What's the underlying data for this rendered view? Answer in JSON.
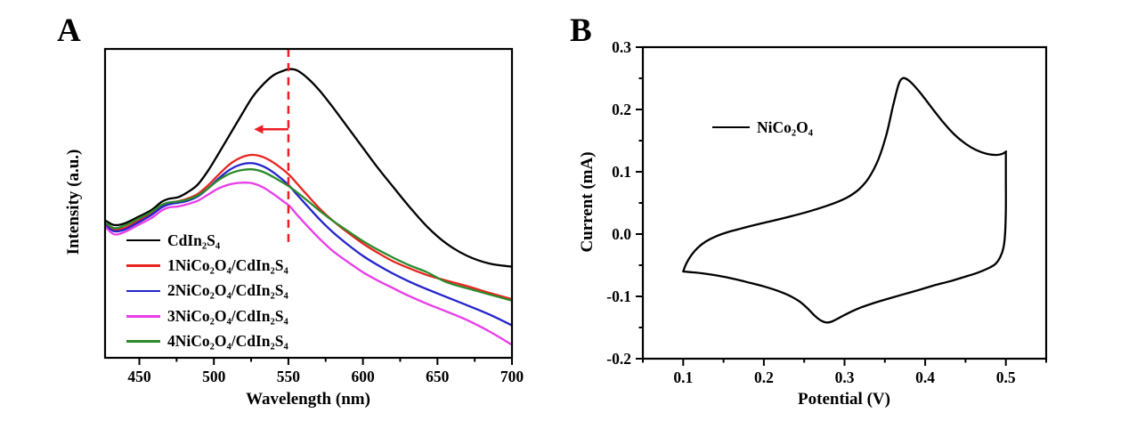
{
  "figure": {
    "background": "#ffffff",
    "panels": [
      {
        "letter": "A"
      },
      {
        "letter": "B"
      }
    ]
  },
  "chart_data": [
    {
      "type": "line",
      "panel_label": "A",
      "title": "",
      "xlabel": "Wavelength (nm)",
      "ylabel": "Intensity (a.u.)",
      "xlim": [
        427,
        700
      ],
      "ylim": [
        0,
        1
      ],
      "grid": false,
      "legend_position": "lower-left-inside",
      "xticks_major": [
        450,
        500,
        550,
        600,
        650,
        700
      ],
      "xtick_labels": [
        "450",
        "500",
        "550",
        "600",
        "650",
        "700"
      ],
      "xticks_minor": [
        475,
        525,
        575,
        625,
        675
      ],
      "yticks_major": [],
      "ytick_labels": [],
      "yticks_minor": [],
      "x": [
        427,
        433,
        440,
        450,
        458,
        465,
        470,
        476,
        482,
        489,
        496,
        503,
        511,
        519,
        526,
        533,
        540,
        547,
        551,
        556,
        563,
        571,
        580,
        590,
        600,
        610,
        620,
        631,
        643,
        656,
        670,
        685,
        700
      ],
      "series": [
        {
          "name": "CdIn₂S₄",
          "color": "#000000",
          "values": [
            0.445,
            0.43,
            0.435,
            0.458,
            0.478,
            0.505,
            0.515,
            0.52,
            0.535,
            0.56,
            0.605,
            0.66,
            0.725,
            0.79,
            0.845,
            0.885,
            0.915,
            0.93,
            0.935,
            0.93,
            0.905,
            0.865,
            0.81,
            0.745,
            0.68,
            0.615,
            0.555,
            0.49,
            0.425,
            0.37,
            0.33,
            0.305,
            0.295
          ]
        },
        {
          "name": "1NiCo₂O₄/CdIn₂S₄",
          "color": "#e8231f",
          "values": [
            0.435,
            0.415,
            0.42,
            0.445,
            0.468,
            0.492,
            0.502,
            0.507,
            0.515,
            0.53,
            0.558,
            0.592,
            0.628,
            0.65,
            0.657,
            0.65,
            0.632,
            0.607,
            0.59,
            0.563,
            0.525,
            0.483,
            0.443,
            0.405,
            0.37,
            0.34,
            0.313,
            0.29,
            0.268,
            0.25,
            0.232,
            0.21,
            0.19
          ]
        },
        {
          "name": "2NiCo₂O₄/CdIn₂S₄",
          "color": "#2424cc",
          "values": [
            0.43,
            0.41,
            0.415,
            0.44,
            0.462,
            0.487,
            0.497,
            0.502,
            0.508,
            0.522,
            0.548,
            0.58,
            0.61,
            0.627,
            0.63,
            0.62,
            0.6,
            0.573,
            0.555,
            0.527,
            0.49,
            0.448,
            0.406,
            0.366,
            0.33,
            0.3,
            0.273,
            0.247,
            0.222,
            0.197,
            0.17,
            0.14,
            0.105
          ]
        },
        {
          "name": "3NiCo₂O₄/CdIn₂S₄",
          "color": "#e83ce8",
          "values": [
            0.425,
            0.4,
            0.407,
            0.432,
            0.452,
            0.477,
            0.487,
            0.49,
            0.497,
            0.508,
            0.528,
            0.548,
            0.562,
            0.567,
            0.565,
            0.552,
            0.53,
            0.505,
            0.49,
            0.462,
            0.425,
            0.385,
            0.345,
            0.31,
            0.277,
            0.25,
            0.226,
            0.2,
            0.175,
            0.15,
            0.122,
            0.085,
            0.042
          ]
        },
        {
          "name": "4NiCo₂O₄/CdIn₂S₄",
          "color": "#2a8a2a",
          "values": [
            0.44,
            0.42,
            0.428,
            0.452,
            0.472,
            0.495,
            0.503,
            0.506,
            0.512,
            0.525,
            0.548,
            0.575,
            0.597,
            0.608,
            0.61,
            0.602,
            0.585,
            0.565,
            0.553,
            0.535,
            0.508,
            0.476,
            0.443,
            0.41,
            0.378,
            0.35,
            0.325,
            0.3,
            0.277,
            0.245,
            0.225,
            0.205,
            0.185
          ]
        }
      ],
      "annotations": [
        {
          "type": "vline",
          "x": 550,
          "y_from": 0.375,
          "y_to": 1.0,
          "color": "#ee1c24",
          "dash": [
            9,
            7
          ],
          "width": 2.5
        },
        {
          "type": "arrow",
          "x_from": 550,
          "x_to": 527,
          "y": 0.74,
          "color": "#ee1c24",
          "width": 2.5
        }
      ]
    },
    {
      "type": "line",
      "panel_label": "B",
      "title": "",
      "xlabel": "Potential (V)",
      "ylabel": "Current (mA)",
      "xlim": [
        0.05,
        0.55
      ],
      "ylim": [
        -0.2,
        0.3
      ],
      "grid": false,
      "legend_position": "upper-left-inside",
      "xticks_major": [
        0.1,
        0.2,
        0.3,
        0.4,
        0.5
      ],
      "xtick_labels": [
        "0.1",
        "0.2",
        "0.3",
        "0.4",
        "0.5"
      ],
      "xticks_minor": [
        0.05,
        0.15,
        0.25,
        0.35,
        0.45,
        0.55
      ],
      "yticks_major": [
        0.3,
        0.2,
        0.1,
        0.0,
        -0.1,
        -0.2
      ],
      "ytick_labels": [
        "0.3",
        "0.2",
        "0.1",
        "0.0",
        "-0.1",
        "-0.2"
      ],
      "yticks_minor": [
        0.25,
        0.15,
        0.05,
        -0.05,
        -0.15
      ],
      "series": [
        {
          "name": "NiCo₂O₄",
          "color": "#000000",
          "points": [
            [
              0.1,
              -0.06
            ],
            [
              0.104,
              -0.047
            ],
            [
              0.11,
              -0.034
            ],
            [
              0.118,
              -0.022
            ],
            [
              0.128,
              -0.012
            ],
            [
              0.14,
              -0.004
            ],
            [
              0.155,
              0.003
            ],
            [
              0.172,
              0.009
            ],
            [
              0.19,
              0.015
            ],
            [
              0.21,
              0.021
            ],
            [
              0.232,
              0.028
            ],
            [
              0.255,
              0.036
            ],
            [
              0.275,
              0.044
            ],
            [
              0.292,
              0.052
            ],
            [
              0.305,
              0.06
            ],
            [
              0.318,
              0.072
            ],
            [
              0.33,
              0.09
            ],
            [
              0.342,
              0.12
            ],
            [
              0.352,
              0.16
            ],
            [
              0.36,
              0.205
            ],
            [
              0.367,
              0.24
            ],
            [
              0.372,
              0.25
            ],
            [
              0.378,
              0.248
            ],
            [
              0.385,
              0.24
            ],
            [
              0.395,
              0.225
            ],
            [
              0.408,
              0.203
            ],
            [
              0.422,
              0.18
            ],
            [
              0.436,
              0.16
            ],
            [
              0.45,
              0.145
            ],
            [
              0.463,
              0.135
            ],
            [
              0.476,
              0.129
            ],
            [
              0.488,
              0.127
            ],
            [
              0.496,
              0.129
            ],
            [
              0.5,
              0.132
            ],
            [
              0.5,
              0.128
            ],
            [
              0.5,
              0.09
            ],
            [
              0.5,
              0.04
            ],
            [
              0.499,
              0.0
            ],
            [
              0.497,
              -0.022
            ],
            [
              0.493,
              -0.037
            ],
            [
              0.487,
              -0.048
            ],
            [
              0.478,
              -0.055
            ],
            [
              0.465,
              -0.062
            ],
            [
              0.448,
              -0.069
            ],
            [
              0.43,
              -0.076
            ],
            [
              0.412,
              -0.082
            ],
            [
              0.394,
              -0.089
            ],
            [
              0.375,
              -0.096
            ],
            [
              0.356,
              -0.103
            ],
            [
              0.338,
              -0.11
            ],
            [
              0.32,
              -0.118
            ],
            [
              0.306,
              -0.126
            ],
            [
              0.294,
              -0.134
            ],
            [
              0.285,
              -0.14
            ],
            [
              0.278,
              -0.142
            ],
            [
              0.271,
              -0.139
            ],
            [
              0.263,
              -0.131
            ],
            [
              0.254,
              -0.119
            ],
            [
              0.244,
              -0.108
            ],
            [
              0.232,
              -0.099
            ],
            [
              0.217,
              -0.091
            ],
            [
              0.2,
              -0.084
            ],
            [
              0.182,
              -0.078
            ],
            [
              0.163,
              -0.072
            ],
            [
              0.144,
              -0.067
            ],
            [
              0.124,
              -0.063
            ],
            [
              0.108,
              -0.061
            ],
            [
              0.1,
              -0.06
            ]
          ]
        }
      ],
      "annotations": []
    }
  ]
}
